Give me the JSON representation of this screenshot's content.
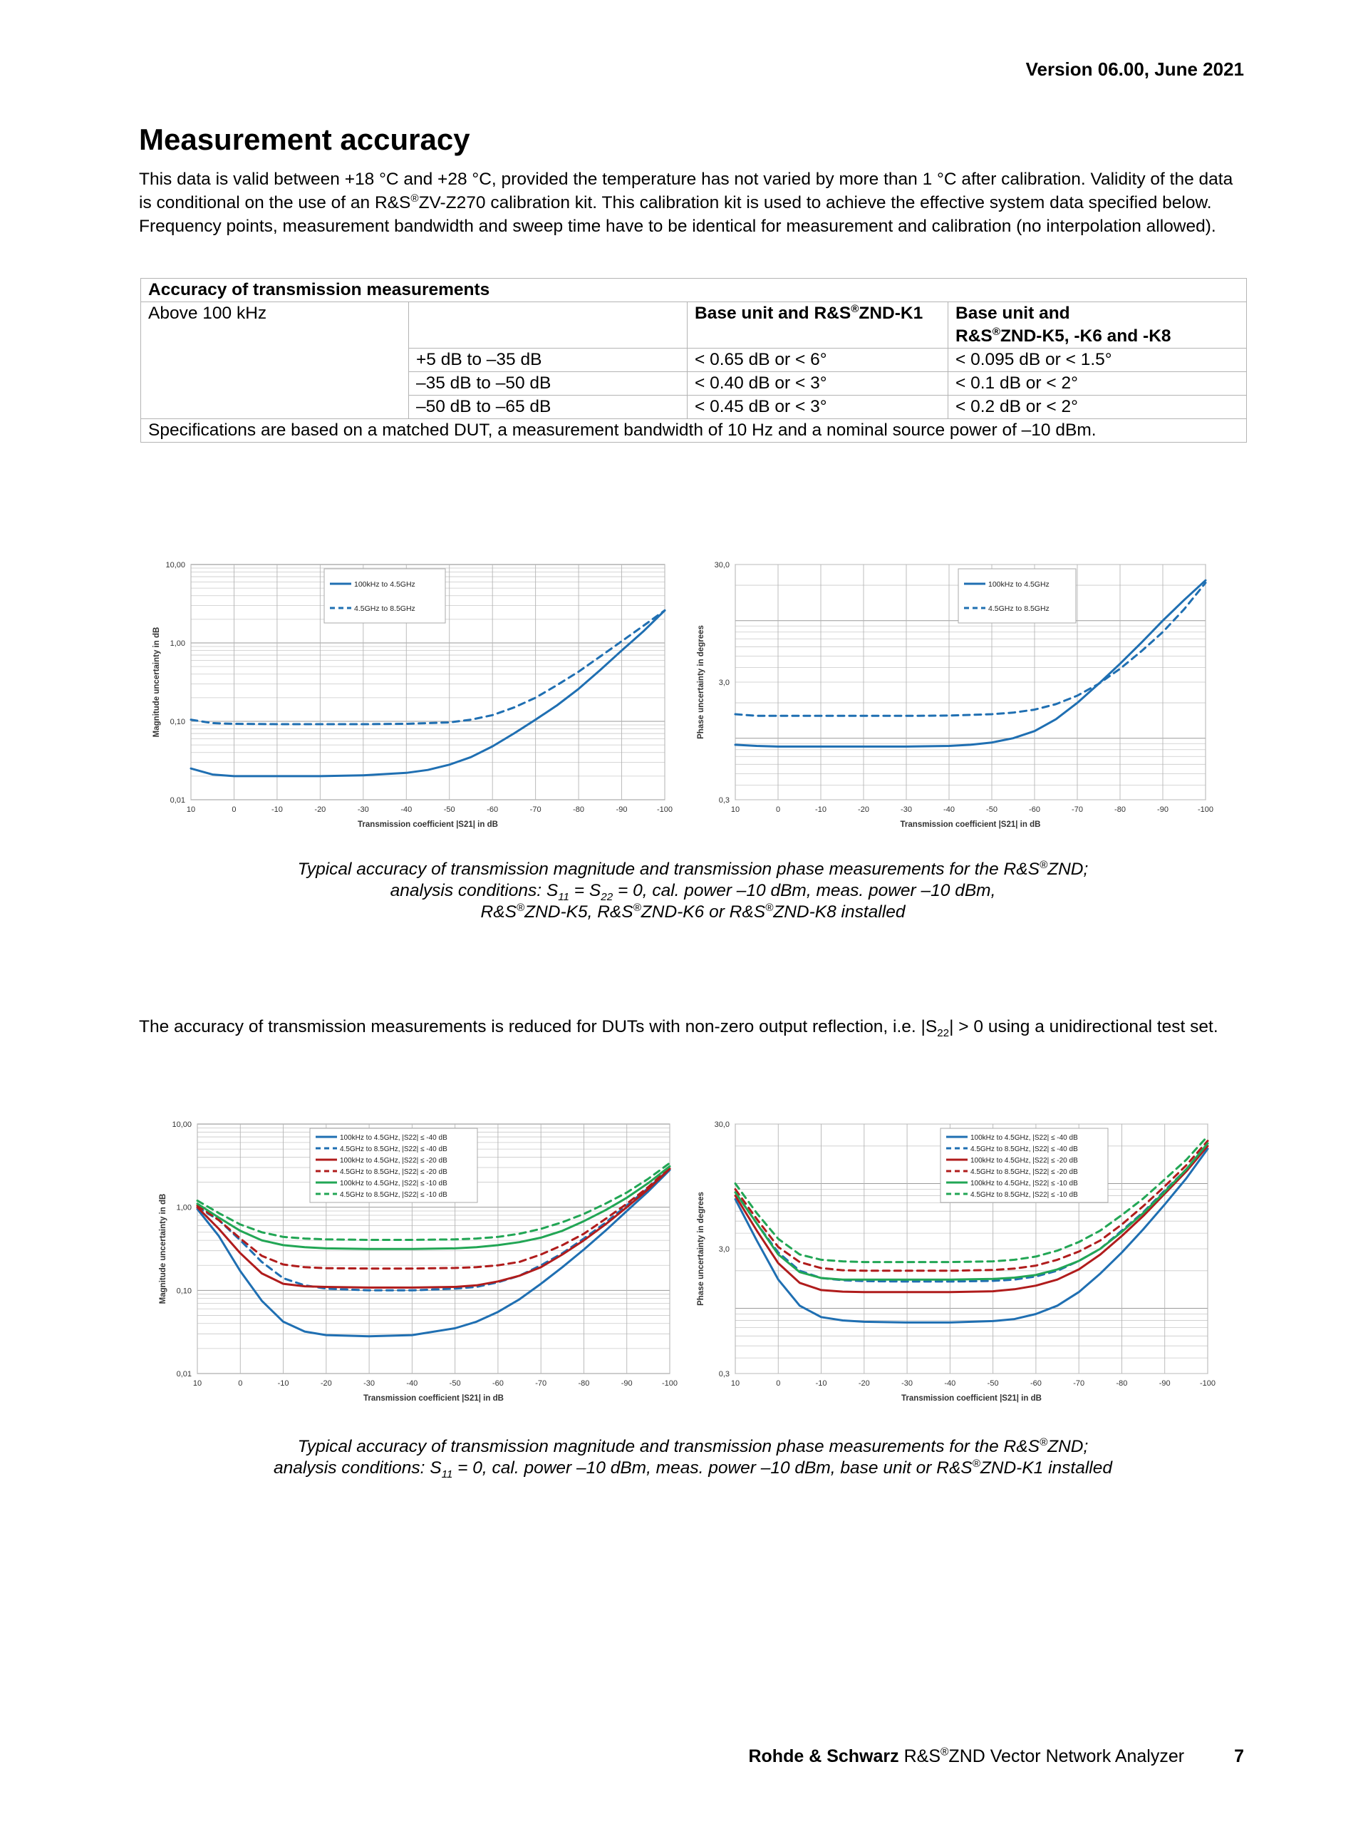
{
  "header": {
    "version": "Version 06.00, June 2021"
  },
  "section": {
    "title": "Measurement accuracy",
    "intro": {
      "p1": "This data is valid between +18 °C and +28 °C, provided the temperature has not varied by more than 1 °C after calibration. Validity of the data is conditional on the use of an R&S",
      "sup": "®",
      "p2": "ZV-Z270 calibration kit. This calibration kit is used to achieve the effective system data specified below. Frequency points, measurement bandwidth and sweep time have to be identical for measurement and calibration (no interpolation allowed)."
    }
  },
  "table": {
    "heading": "Accuracy of transmission measurements",
    "row_label": "Above 100 kHz",
    "col1_pre": "Base unit and R&S",
    "col1_sup": "®",
    "col1_post": "ZND-K1",
    "col2_line1": "Base unit and",
    "col2_pre": "R&S",
    "col2_sup": "®",
    "col2_post": "ZND-K5, -K6 and -K8",
    "rows": [
      {
        "range": "+5 dB to –35 dB",
        "k1": "< 0.65 dB or < 6°",
        "k5": "< 0.095 dB or < 1.5°"
      },
      {
        "range": "–35 dB to –50 dB",
        "k1": "< 0.40 dB or < 3°",
        "k5": "< 0.1 dB or < 2°"
      },
      {
        "range": "–50 dB to –65 dB",
        "k1": "< 0.45 dB or < 3°",
        "k5": "< 0.2 dB or < 2°"
      }
    ],
    "footnote": "Specifications are based on a matched DUT, a measurement bandwidth of 10 Hz and a nominal source power of –10 dBm."
  },
  "caption1": {
    "l1_pre": "Typical accuracy of transmission magnitude and transmission phase measurements for the R&S",
    "sup": "®",
    "l1_post": "ZND;",
    "l2_a": "analysis conditions: S",
    "l2_sub1": "11",
    "l2_b": " = S",
    "l2_sub2": "22",
    "l2_c": " = 0, cal. power –10 dBm, meas. power –10 dBm,",
    "l3_a": "R&S",
    "l3_b": "ZND-K5, R&S",
    "l3_c": "ZND-K6 or R&S",
    "l3_d": "ZND-K8 installed"
  },
  "para2": {
    "a": "The accuracy of transmission measurements is reduced for DUTs with non-zero output reflection, i.e. |S",
    "sub": "22",
    "b": "| > 0 using a unidirectional test set."
  },
  "caption2": {
    "l1_pre": "Typical accuracy of transmission magnitude and transmission phase measurements for the R&S",
    "sup": "®",
    "l1_post": "ZND;",
    "l2_a": "analysis conditions: S",
    "l2_sub": "11",
    "l2_b": " = 0, cal. power –10 dBm, meas. power –10 dBm, base unit or R&S",
    "l2_c": "ZND-K1 installed"
  },
  "footer": {
    "brand": "Rohde & Schwarz",
    "product_pre": " R&S",
    "sup": "®",
    "product_post": "ZND Vector Network Analyzer",
    "page": "7"
  },
  "chart_data": [
    {
      "type": "line",
      "id": "mag1",
      "title": "",
      "xlabel": "Transmission coefficient |S21| in dB",
      "ylabel": "Magnitude uncertainty in dB",
      "yscale": "log",
      "ylim": [
        0.01,
        10
      ],
      "xlim": [
        10,
        -100
      ],
      "x_ticks": [
        "10",
        "0",
        "-10",
        "-20",
        "-30",
        "-40",
        "-50",
        "-60",
        "-70",
        "-80",
        "-90",
        "-100"
      ],
      "y_ticks": [
        "10,00",
        "1,00",
        "0,10",
        "0,01"
      ],
      "legend": "top-center",
      "series": [
        {
          "name": "100kHz to 4.5GHz",
          "color": "#1f6fb2",
          "dash": false,
          "x": [
            10,
            5,
            0,
            -10,
            -20,
            -30,
            -40,
            -45,
            -50,
            -55,
            -60,
            -65,
            -70,
            -75,
            -80,
            -85,
            -90,
            -95,
            -100
          ],
          "y": [
            0.025,
            0.021,
            0.02,
            0.02,
            0.02,
            0.0205,
            0.022,
            0.024,
            0.028,
            0.035,
            0.048,
            0.07,
            0.105,
            0.16,
            0.26,
            0.45,
            0.8,
            1.4,
            2.6
          ]
        },
        {
          "name": "4.5GHz to 8.5GHz",
          "color": "#1f6fb2",
          "dash": true,
          "x": [
            10,
            5,
            0,
            -10,
            -20,
            -30,
            -40,
            -50,
            -55,
            -60,
            -65,
            -70,
            -75,
            -80,
            -85,
            -90,
            -95,
            -100
          ],
          "y": [
            0.105,
            0.095,
            0.093,
            0.092,
            0.092,
            0.092,
            0.093,
            0.097,
            0.105,
            0.12,
            0.15,
            0.2,
            0.29,
            0.43,
            0.67,
            1.05,
            1.65,
            2.6
          ]
        }
      ]
    },
    {
      "type": "line",
      "id": "phase1",
      "title": "",
      "xlabel": "Transmission coefficient |S21| in dB",
      "ylabel": "Phase uncertainty in degrees",
      "yscale": "log",
      "ylim": [
        0.3,
        30
      ],
      "xlim": [
        10,
        -100
      ],
      "x_ticks": [
        "10",
        "0",
        "-10",
        "-20",
        "-30",
        "-40",
        "-50",
        "-60",
        "-70",
        "-80",
        "-90",
        "-100"
      ],
      "y_ticks": [
        "30,0",
        "3,0",
        "0,3"
      ],
      "legend": "top-right",
      "series": [
        {
          "name": "100kHz to 4.5GHz",
          "color": "#1f6fb2",
          "dash": false,
          "x": [
            10,
            5,
            0,
            -10,
            -20,
            -30,
            -40,
            -45,
            -50,
            -55,
            -60,
            -65,
            -70,
            -75,
            -80,
            -85,
            -90,
            -95,
            -100
          ],
          "y": [
            0.88,
            0.86,
            0.85,
            0.85,
            0.85,
            0.85,
            0.86,
            0.88,
            0.92,
            1.0,
            1.15,
            1.45,
            2.0,
            2.9,
            4.3,
            6.5,
            10.0,
            15.0,
            22.0
          ]
        },
        {
          "name": "4.5GHz to 8.5GHz",
          "color": "#1f6fb2",
          "dash": true,
          "x": [
            10,
            5,
            0,
            -10,
            -20,
            -30,
            -40,
            -50,
            -55,
            -60,
            -65,
            -70,
            -75,
            -80,
            -85,
            -90,
            -95,
            -100
          ],
          "y": [
            1.6,
            1.55,
            1.55,
            1.55,
            1.55,
            1.55,
            1.56,
            1.6,
            1.65,
            1.75,
            1.95,
            2.3,
            2.9,
            3.9,
            5.5,
            8.0,
            12.5,
            21.0
          ]
        }
      ]
    },
    {
      "type": "line",
      "id": "mag2",
      "title": "",
      "xlabel": "Transmission coefficient |S21| in dB",
      "ylabel": "Magnitude uncertainty in dB",
      "yscale": "log",
      "ylim": [
        0.01,
        10
      ],
      "xlim": [
        10,
        -100
      ],
      "x_ticks": [
        "10",
        "0",
        "-10",
        "-20",
        "-30",
        "-40",
        "-50",
        "-60",
        "-70",
        "-80",
        "-90",
        "-100"
      ],
      "y_ticks": [
        "10,00",
        "1,00",
        "0,10",
        "0,01"
      ],
      "legend": "top-center",
      "series": [
        {
          "name": "100kHz to 4.5GHz, |S22| ≤ -40 dB",
          "color": "#1f6fb2",
          "dash": false,
          "x": [
            10,
            5,
            0,
            -5,
            -10,
            -15,
            -20,
            -30,
            -40,
            -50,
            -55,
            -60,
            -65,
            -70,
            -75,
            -80,
            -85,
            -90,
            -95,
            -100
          ],
          "y": [
            0.95,
            0.45,
            0.17,
            0.075,
            0.042,
            0.032,
            0.029,
            0.028,
            0.029,
            0.035,
            0.042,
            0.055,
            0.078,
            0.12,
            0.19,
            0.31,
            0.52,
            0.9,
            1.55,
            2.8
          ]
        },
        {
          "name": "4.5GHz to 8.5GHz, |S22| ≤ -40 dB",
          "color": "#1f6fb2",
          "dash": true,
          "x": [
            10,
            5,
            0,
            -5,
            -10,
            -15,
            -20,
            -30,
            -40,
            -50,
            -55,
            -60,
            -65,
            -70,
            -75,
            -80,
            -85,
            -90,
            -95,
            -100
          ],
          "y": [
            1.0,
            0.7,
            0.4,
            0.22,
            0.14,
            0.115,
            0.105,
            0.1,
            0.1,
            0.105,
            0.11,
            0.125,
            0.15,
            0.2,
            0.28,
            0.42,
            0.65,
            1.05,
            1.7,
            2.9
          ]
        },
        {
          "name": "100kHz to 4.5GHz, |S22| ≤ -20 dB",
          "color": "#b01c1c",
          "dash": false,
          "x": [
            10,
            5,
            0,
            -5,
            -10,
            -15,
            -20,
            -30,
            -40,
            -50,
            -55,
            -60,
            -65,
            -70,
            -75,
            -80,
            -85,
            -90,
            -95,
            -100
          ],
          "y": [
            1.0,
            0.55,
            0.28,
            0.16,
            0.12,
            0.112,
            0.11,
            0.108,
            0.108,
            0.11,
            0.115,
            0.128,
            0.15,
            0.19,
            0.27,
            0.4,
            0.62,
            1.0,
            1.65,
            2.9
          ]
        },
        {
          "name": "4.5GHz to 8.5GHz, |S22| ≤ -20 dB",
          "color": "#b01c1c",
          "dash": true,
          "x": [
            10,
            5,
            0,
            -5,
            -10,
            -15,
            -20,
            -30,
            -40,
            -50,
            -55,
            -60,
            -65,
            -70,
            -75,
            -80,
            -85,
            -90,
            -95,
            -100
          ],
          "y": [
            1.05,
            0.7,
            0.42,
            0.26,
            0.205,
            0.19,
            0.185,
            0.183,
            0.183,
            0.186,
            0.19,
            0.2,
            0.22,
            0.27,
            0.35,
            0.48,
            0.72,
            1.1,
            1.75,
            3.0
          ]
        },
        {
          "name": "100kHz to 4.5GHz, |S22| ≤ -10 dB",
          "color": "#22a655",
          "dash": false,
          "x": [
            10,
            5,
            0,
            -5,
            -10,
            -15,
            -20,
            -30,
            -40,
            -50,
            -55,
            -60,
            -65,
            -70,
            -75,
            -80,
            -85,
            -90,
            -95,
            -100
          ],
          "y": [
            1.1,
            0.75,
            0.52,
            0.4,
            0.35,
            0.33,
            0.32,
            0.315,
            0.315,
            0.32,
            0.33,
            0.35,
            0.38,
            0.43,
            0.52,
            0.68,
            0.92,
            1.3,
            1.95,
            3.1
          ]
        },
        {
          "name": "4.5GHz to 8.5GHz, |S22| ≤ -10 dB",
          "color": "#22a655",
          "dash": true,
          "x": [
            10,
            5,
            0,
            -5,
            -10,
            -15,
            -20,
            -30,
            -40,
            -50,
            -55,
            -60,
            -65,
            -70,
            -75,
            -80,
            -85,
            -90,
            -95,
            -100
          ],
          "y": [
            1.2,
            0.85,
            0.62,
            0.5,
            0.44,
            0.42,
            0.41,
            0.405,
            0.405,
            0.41,
            0.42,
            0.44,
            0.48,
            0.55,
            0.66,
            0.83,
            1.1,
            1.5,
            2.2,
            3.4
          ]
        }
      ]
    },
    {
      "type": "line",
      "id": "phase2",
      "title": "",
      "xlabel": "Transmission coefficient |S21| in dB",
      "ylabel": "Phase uncertainty in degrees",
      "yscale": "log",
      "ylim": [
        0.3,
        30
      ],
      "xlim": [
        10,
        -100
      ],
      "x_ticks": [
        "10",
        "0",
        "-10",
        "-20",
        "-30",
        "-40",
        "-50",
        "-60",
        "-70",
        "-80",
        "-90",
        "-100"
      ],
      "y_ticks": [
        "30,0",
        "3,0",
        "0,3"
      ],
      "legend": "top-right",
      "series": [
        {
          "name": "100kHz to 4.5GHz, |S22| ≤ -40 dB",
          "color": "#1f6fb2",
          "dash": false,
          "x": [
            10,
            5,
            0,
            -5,
            -10,
            -15,
            -20,
            -30,
            -40,
            -50,
            -55,
            -60,
            -65,
            -70,
            -75,
            -80,
            -85,
            -90,
            -95,
            -100
          ],
          "y": [
            7.5,
            3.5,
            1.7,
            1.05,
            0.85,
            0.8,
            0.78,
            0.77,
            0.77,
            0.79,
            0.82,
            0.9,
            1.05,
            1.35,
            1.9,
            2.8,
            4.3,
            6.8,
            11.0,
            19.0
          ]
        },
        {
          "name": "4.5GHz to 8.5GHz, |S22| ≤ -40 dB",
          "color": "#1f6fb2",
          "dash": true,
          "x": [
            10,
            5,
            0,
            -5,
            -10,
            -15,
            -20,
            -30,
            -40,
            -50,
            -55,
            -60,
            -65,
            -70,
            -75,
            -80,
            -85,
            -90,
            -95,
            -100
          ],
          "y": [
            8.5,
            4.8,
            2.8,
            2.0,
            1.75,
            1.68,
            1.65,
            1.64,
            1.64,
            1.66,
            1.7,
            1.8,
            2.0,
            2.4,
            3.0,
            4.2,
            5.9,
            8.8,
            13.0,
            21.0
          ]
        },
        {
          "name": "100kHz to 4.5GHz, |S22| ≤ -20 dB",
          "color": "#b01c1c",
          "dash": false,
          "x": [
            10,
            5,
            0,
            -5,
            -10,
            -15,
            -20,
            -30,
            -40,
            -50,
            -55,
            -60,
            -65,
            -70,
            -75,
            -80,
            -85,
            -90,
            -95,
            -100
          ],
          "y": [
            8.0,
            4.2,
            2.3,
            1.6,
            1.4,
            1.36,
            1.35,
            1.35,
            1.35,
            1.37,
            1.42,
            1.52,
            1.7,
            2.05,
            2.7,
            3.8,
            5.5,
            8.3,
            12.5,
            20.0
          ]
        },
        {
          "name": "4.5GHz to 8.5GHz, |S22| ≤ -20 dB",
          "color": "#b01c1c",
          "dash": true,
          "x": [
            10,
            5,
            0,
            -5,
            -10,
            -15,
            -20,
            -30,
            -40,
            -50,
            -55,
            -60,
            -65,
            -70,
            -75,
            -80,
            -85,
            -90,
            -95,
            -100
          ],
          "y": [
            9.0,
            5.2,
            3.1,
            2.35,
            2.1,
            2.02,
            2.0,
            2.0,
            2.0,
            2.03,
            2.08,
            2.2,
            2.45,
            2.85,
            3.5,
            4.7,
            6.6,
            9.5,
            14.0,
            22.0
          ]
        },
        {
          "name": "100kHz to 4.5GHz, |S22| ≤ -10 dB",
          "color": "#22a655",
          "dash": false,
          "x": [
            10,
            5,
            0,
            -5,
            -10,
            -15,
            -20,
            -30,
            -40,
            -50,
            -55,
            -60,
            -65,
            -70,
            -75,
            -80,
            -85,
            -90,
            -95,
            -100
          ],
          "y": [
            8.5,
            4.8,
            2.7,
            1.95,
            1.75,
            1.7,
            1.7,
            1.7,
            1.7,
            1.72,
            1.76,
            1.85,
            2.05,
            2.4,
            3.0,
            4.1,
            5.8,
            8.6,
            13.0,
            21.0
          ]
        },
        {
          "name": "4.5GHz to 8.5GHz, |S22| ≤ -10 dB",
          "color": "#22a655",
          "dash": true,
          "x": [
            10,
            5,
            0,
            -5,
            -10,
            -15,
            -20,
            -30,
            -40,
            -50,
            -55,
            -60,
            -65,
            -70,
            -75,
            -80,
            -85,
            -90,
            -95,
            -100
          ],
          "y": [
            10.0,
            5.8,
            3.6,
            2.7,
            2.45,
            2.38,
            2.35,
            2.35,
            2.35,
            2.38,
            2.45,
            2.6,
            2.9,
            3.4,
            4.2,
            5.6,
            7.6,
            10.8,
            15.5,
            24.0
          ]
        }
      ]
    }
  ]
}
